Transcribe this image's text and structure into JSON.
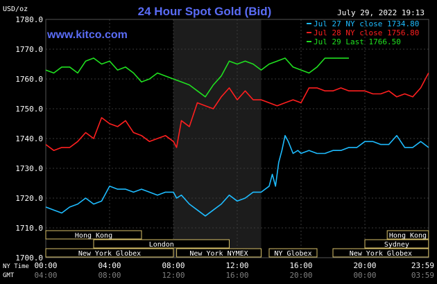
{
  "chart_data": {
    "type": "line",
    "title": "24 Hour Spot Gold (Bid)",
    "site": "www.kitco.com",
    "timestamp": "July 29, 2022 19:13",
    "ylabel": "USD/oz",
    "ylim": [
      1700,
      1780
    ],
    "y_ticks": [
      "1780.0",
      "1770.0",
      "1760.0",
      "1750.0",
      "1740.0",
      "1730.0",
      "1720.0",
      "1710.0",
      "1700.0"
    ],
    "x_row_labels": {
      "ny": "NY Time",
      "gmt": "GMT"
    },
    "x_ticks_ny": [
      "00:00",
      "04:00",
      "08:00",
      "12:00",
      "16:00",
      "20:00",
      "23:59"
    ],
    "x_ticks_gmt": [
      "04:00",
      "08:00",
      "12:00",
      "16:00",
      "20:00",
      "00:00",
      "03:59"
    ],
    "x_range_hours": [
      0,
      24
    ],
    "highlight_hours": [
      8.0,
      13.5
    ],
    "grid": true,
    "legend_position": "top-right",
    "legend": [
      {
        "label": "Jul 27 NY close 1734.80",
        "color": "#1ebcff"
      },
      {
        "label": "Jul 28 NY close 1756.80",
        "color": "#ff1f1f"
      },
      {
        "label": "Jul 29 Last 1766.50",
        "color": "#20e020"
      }
    ],
    "series": [
      {
        "name": "Jul 27",
        "color": "#1ebcff",
        "x": [
          0,
          0.5,
          1,
          1.5,
          2,
          2.5,
          3,
          3.5,
          4,
          4.5,
          5,
          5.5,
          6,
          6.5,
          7,
          7.5,
          8,
          8.2,
          8.5,
          9,
          9.5,
          10,
          10.5,
          11,
          11.5,
          12,
          12.5,
          13,
          13.5,
          14,
          14.2,
          14.4,
          14.6,
          14.8,
          15,
          15.2,
          15.5,
          15.8,
          16,
          16.5,
          17,
          17.5,
          18,
          18.5,
          19,
          19.5,
          20,
          20.5,
          21,
          21.5,
          22,
          22.5,
          23,
          23.5,
          23.99
        ],
        "y": [
          1717,
          1716,
          1715,
          1717,
          1718,
          1720,
          1718,
          1719,
          1724,
          1723,
          1723,
          1722,
          1723,
          1722,
          1721,
          1722,
          1722,
          1720,
          1721,
          1718,
          1716,
          1714,
          1716,
          1718,
          1721,
          1719,
          1720,
          1722,
          1722,
          1724,
          1728,
          1724,
          1732,
          1736,
          1741,
          1739,
          1735,
          1736,
          1735,
          1736,
          1735,
          1735,
          1736,
          1736,
          1737,
          1737,
          1739,
          1739,
          1738,
          1738,
          1741,
          1737,
          1737,
          1739,
          1737
        ]
      },
      {
        "name": "Jul 28",
        "color": "#ff1f1f",
        "x": [
          0,
          0.5,
          1,
          1.5,
          2,
          2.5,
          3,
          3.5,
          4,
          4.5,
          5,
          5.5,
          6,
          6.5,
          7,
          7.5,
          8,
          8.2,
          8.5,
          9,
          9.5,
          10,
          10.5,
          11,
          11.5,
          12,
          12.5,
          13,
          13.5,
          14,
          14.5,
          15,
          15.5,
          16,
          16.5,
          17,
          17.5,
          18,
          18.5,
          19,
          19.5,
          20,
          20.5,
          21,
          21.5,
          22,
          22.5,
          23,
          23.5,
          23.99
        ],
        "y": [
          1738,
          1736,
          1737,
          1737,
          1739,
          1742,
          1740,
          1747,
          1745,
          1744,
          1746,
          1742,
          1741,
          1739,
          1740,
          1741,
          1739,
          1737,
          1746,
          1744,
          1752,
          1751,
          1750,
          1754,
          1757,
          1753,
          1756,
          1753,
          1753,
          1752,
          1751,
          1752,
          1753,
          1752,
          1757,
          1757,
          1756,
          1756,
          1757,
          1756,
          1756,
          1756,
          1755,
          1755,
          1756,
          1754,
          1755,
          1754,
          1757,
          1762
        ]
      },
      {
        "name": "Jul 29",
        "color": "#20e020",
        "x": [
          0,
          0.5,
          1,
          1.5,
          2,
          2.5,
          3,
          3.5,
          4,
          4.5,
          5,
          5.5,
          6,
          6.5,
          7,
          7.5,
          8,
          8.5,
          9,
          9.5,
          10,
          10.5,
          11,
          11.5,
          12,
          12.5,
          13,
          13.5,
          14,
          14.5,
          15,
          15.5,
          16,
          16.5,
          17,
          17.5,
          18,
          18.5,
          19
        ],
        "y": [
          1763,
          1762,
          1764,
          1764,
          1762,
          1766,
          1767,
          1765,
          1766,
          1763,
          1764,
          1762,
          1759,
          1760,
          1762,
          1761,
          1760,
          1759,
          1758,
          1756,
          1754,
          1758,
          1761,
          1766,
          1765,
          1766,
          1765,
          1763,
          1765,
          1766,
          1767,
          1764,
          1763,
          1762,
          1764,
          1767,
          1767,
          1767,
          1767
        ]
      }
    ],
    "sessions_row1": [
      {
        "label": "Hong Kong",
        "start": 0,
        "end": 6.0
      },
      {
        "label": "Hong Kong",
        "start": 21.4,
        "end": 23.99
      }
    ],
    "sessions_row2": [
      {
        "label": "London",
        "start": 3.0,
        "end": 11.5
      },
      {
        "label": "Sydney",
        "start": 20.0,
        "end": 23.99
      }
    ],
    "sessions_row3": [
      {
        "label": "New York Globex",
        "start": 0,
        "end": 8.0
      },
      {
        "label": "New York NYMEX",
        "start": 8.2,
        "end": 13.5
      },
      {
        "label": "NY Globex",
        "start": 14.0,
        "end": 17.0
      },
      {
        "label": "New York Globex",
        "start": 18.0,
        "end": 23.99
      }
    ]
  }
}
